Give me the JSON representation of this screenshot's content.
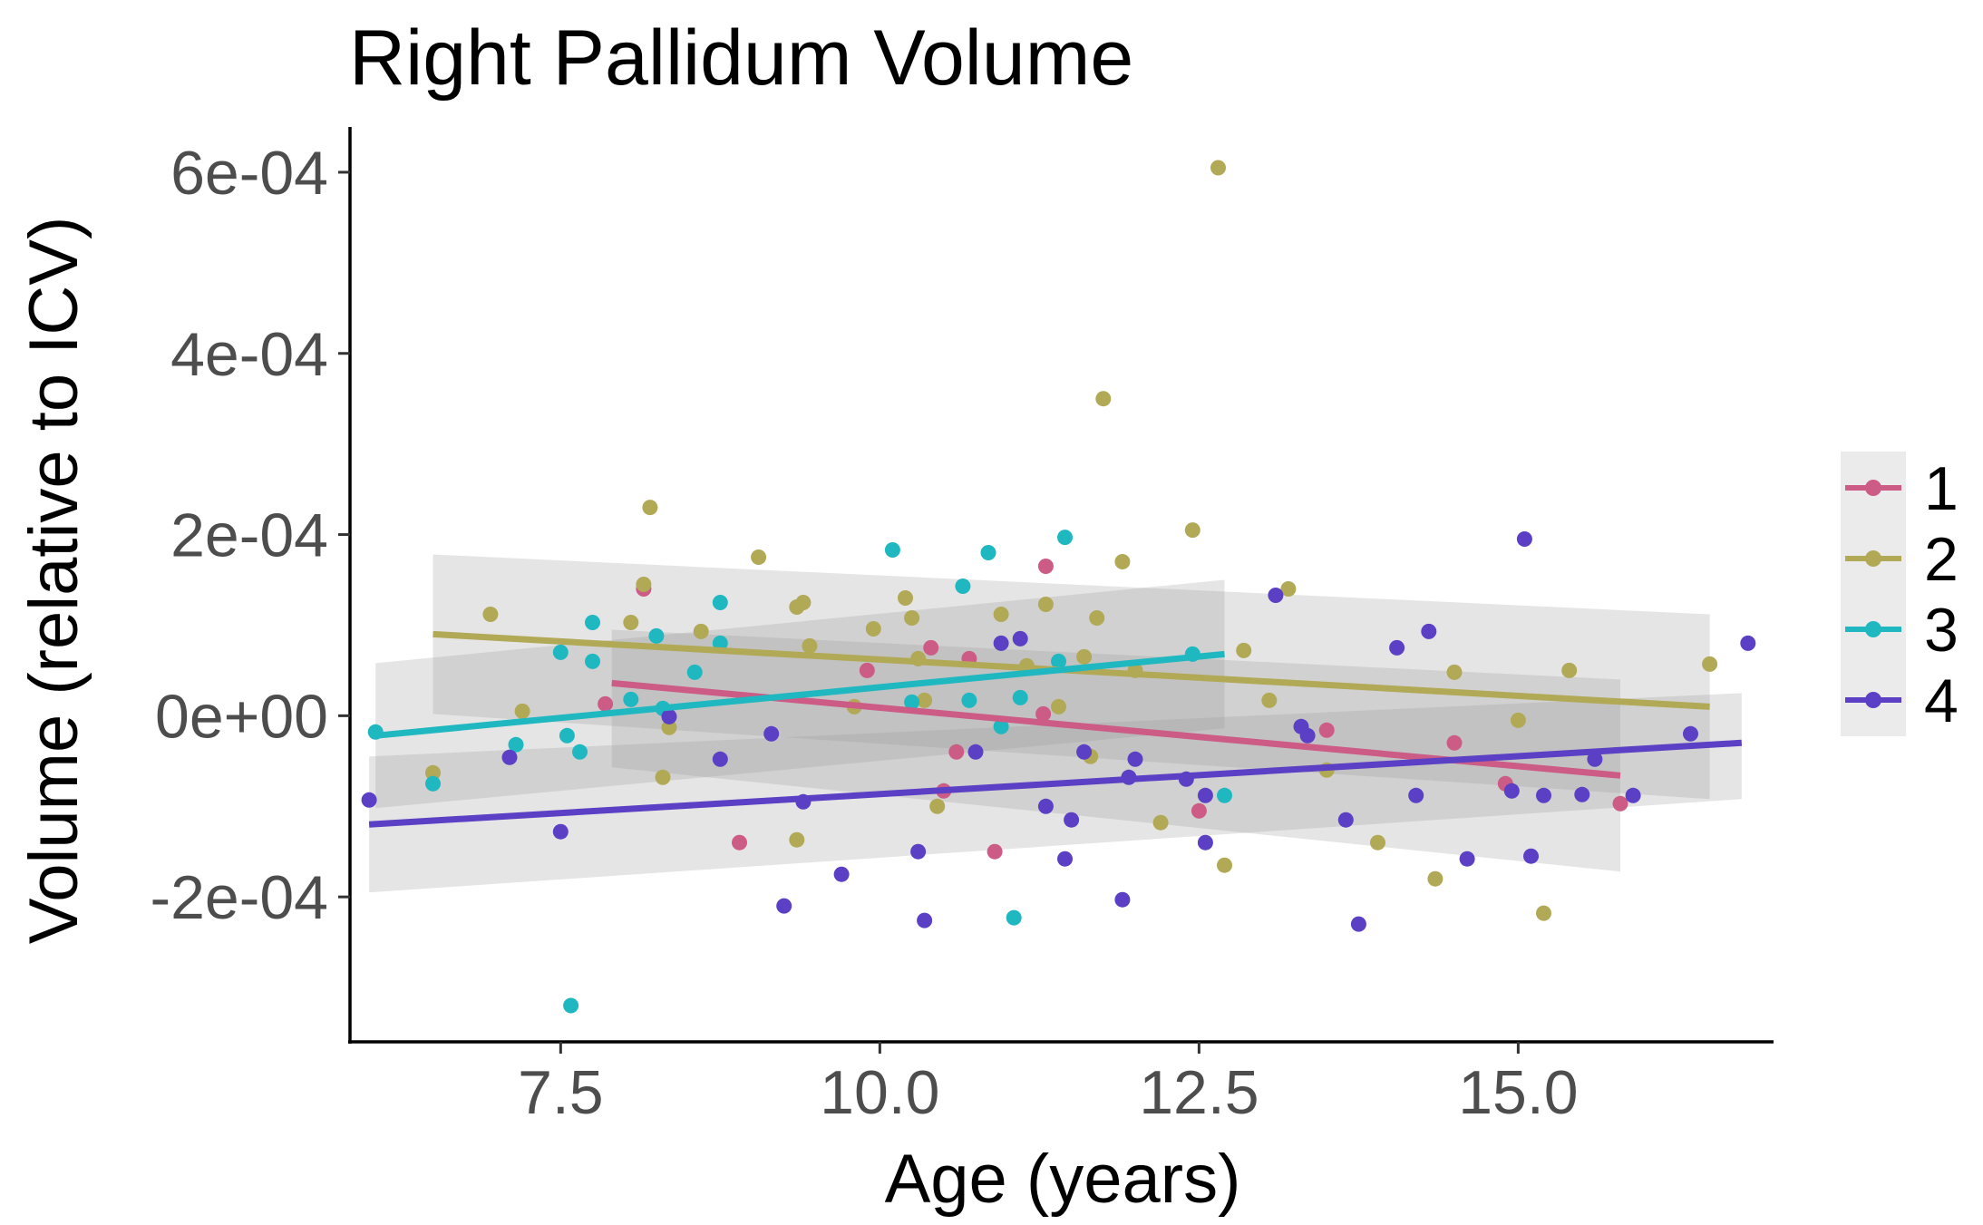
{
  "chart_data": {
    "type": "scatter",
    "title": "Right Pallidum Volume",
    "xlabel": "Age (years)",
    "ylabel": "Volume (relative to ICV)",
    "xlim": [
      5.85,
      17.0
    ],
    "ylim": [
      -0.00036,
      0.00065
    ],
    "x_ticks": [
      7.5,
      10.0,
      12.5,
      15.0
    ],
    "x_tick_labels": [
      "7.5",
      "10.0",
      "12.5",
      "15.0"
    ],
    "y_ticks": [
      -0.0002,
      0.0,
      0.0002,
      0.0004,
      0.0006
    ],
    "y_tick_labels": [
      "-2e-04",
      "0e+00",
      "2e-04",
      "4e-04",
      "6e-04"
    ],
    "grid": false,
    "legend_position": "right",
    "series": [
      {
        "name": "1",
        "color": "#cc5b86",
        "points": [
          [
            7.85,
            1.3e-05
          ],
          [
            8.15,
            0.00014
          ],
          [
            8.9,
            -0.00014
          ],
          [
            9.9,
            5e-05
          ],
          [
            10.4,
            7.5e-05
          ],
          [
            10.6,
            -4e-05
          ],
          [
            10.7,
            6.3e-05
          ],
          [
            10.5,
            -8.3e-05
          ],
          [
            10.9,
            -0.00015
          ],
          [
            11.3,
            0.000165
          ],
          [
            11.28,
            2e-06
          ],
          [
            12.5,
            -0.000105
          ],
          [
            13.5,
            -1.6e-05
          ],
          [
            14.5,
            -3e-05
          ],
          [
            14.9,
            -7.5e-05
          ],
          [
            15.8,
            -9.7e-05
          ]
        ],
        "fit": {
          "x": [
            7.9,
            15.8
          ],
          "y": [
            3.6e-05,
            -6.6e-05
          ],
          "ci_upper": [
            9.5e-05,
            4e-05
          ],
          "ci_lower": [
            -5.7e-05,
            -0.000172
          ]
        }
      },
      {
        "name": "2",
        "color": "#b1a956",
        "points": [
          [
            6.5,
            -6.3e-05
          ],
          [
            6.95,
            0.000112
          ],
          [
            7.2,
            5e-06
          ],
          [
            8.05,
            0.000103
          ],
          [
            8.15,
            0.000145
          ],
          [
            8.2,
            0.00023
          ],
          [
            8.3,
            -6.8e-05
          ],
          [
            8.35,
            -1.3e-05
          ],
          [
            8.6,
            9.3e-05
          ],
          [
            9.05,
            0.000175
          ],
          [
            9.35,
            0.00012
          ],
          [
            9.4,
            0.000125
          ],
          [
            9.45,
            7.7e-05
          ],
          [
            9.35,
            -0.000137
          ],
          [
            9.8,
            1e-05
          ],
          [
            9.95,
            9.6e-05
          ],
          [
            10.2,
            0.00013
          ],
          [
            10.25,
            0.000108
          ],
          [
            10.3,
            6.3e-05
          ],
          [
            10.35,
            1.7e-05
          ],
          [
            10.45,
            -0.0001
          ],
          [
            10.95,
            0.000112
          ],
          [
            11.15,
            5.5e-05
          ],
          [
            11.3,
            0.000123
          ],
          [
            11.4,
            1e-05
          ],
          [
            11.6,
            6.5e-05
          ],
          [
            11.65,
            -4.5e-05
          ],
          [
            11.7,
            0.000108
          ],
          [
            11.75,
            0.00035
          ],
          [
            11.9,
            0.00017
          ],
          [
            12.0,
            5e-05
          ],
          [
            12.2,
            -0.000118
          ],
          [
            12.45,
            0.000205
          ],
          [
            12.65,
            0.000605
          ],
          [
            12.7,
            -0.000165
          ],
          [
            12.85,
            7.2e-05
          ],
          [
            13.05,
            1.7e-05
          ],
          [
            13.2,
            0.00014
          ],
          [
            13.5,
            -6e-05
          ],
          [
            13.9,
            -0.00014
          ],
          [
            14.35,
            -0.00018
          ],
          [
            14.5,
            4.8e-05
          ],
          [
            15.0,
            -5e-06
          ],
          [
            15.2,
            -0.000218
          ],
          [
            15.4,
            5e-05
          ],
          [
            16.5,
            5.7e-05
          ]
        ],
        "fit": {
          "x": [
            6.5,
            16.5
          ],
          "y": [
            9e-05,
            1e-05
          ],
          "ci_upper": [
            0.000178,
            0.000112
          ],
          "ci_lower": [
            2e-06,
            -9.2e-05
          ]
        }
      },
      {
        "name": "3",
        "color": "#1fb8c1",
        "points": [
          [
            6.05,
            -1.8e-05
          ],
          [
            6.5,
            -7.5e-05
          ],
          [
            7.15,
            -3.2e-05
          ],
          [
            7.5,
            7e-05
          ],
          [
            7.55,
            -2.2e-05
          ],
          [
            7.58,
            -0.00032
          ],
          [
            7.65,
            -4e-05
          ],
          [
            7.75,
            6e-05
          ],
          [
            7.75,
            0.000103
          ],
          [
            8.05,
            1.8e-05
          ],
          [
            8.25,
            8.8e-05
          ],
          [
            8.3,
            8e-06
          ],
          [
            8.55,
            4.8e-05
          ],
          [
            8.75,
            8e-05
          ],
          [
            8.75,
            0.000125
          ],
          [
            10.1,
            0.000183
          ],
          [
            10.25,
            1.5e-05
          ],
          [
            10.65,
            0.000143
          ],
          [
            10.7,
            1.7e-05
          ],
          [
            10.85,
            0.00018
          ],
          [
            10.95,
            -1.2e-05
          ],
          [
            11.05,
            -0.000223
          ],
          [
            11.1,
            2e-05
          ],
          [
            11.4,
            6e-05
          ],
          [
            11.45,
            0.000197
          ],
          [
            12.45,
            6.8e-05
          ],
          [
            12.7,
            -8.8e-05
          ]
        ],
        "fit": {
          "x": [
            6.05,
            12.7
          ],
          "y": [
            -2.2e-05,
            6.8e-05
          ],
          "ci_upper": [
            5.8e-05,
            0.00015
          ],
          "ci_lower": [
            -0.000102,
            -1.4e-05
          ]
        }
      },
      {
        "name": "4",
        "color": "#5b3fc4",
        "points": [
          [
            6.0,
            -9.3e-05
          ],
          [
            7.1,
            -4.6e-05
          ],
          [
            7.5,
            -0.000128
          ],
          [
            8.35,
            -1e-06
          ],
          [
            8.75,
            -4.8e-05
          ],
          [
            9.15,
            -2e-05
          ],
          [
            9.25,
            -0.00021
          ],
          [
            9.4,
            -9.5e-05
          ],
          [
            9.7,
            -0.000175
          ],
          [
            10.3,
            -0.00015
          ],
          [
            10.35,
            -0.000226
          ],
          [
            10.75,
            -4e-05
          ],
          [
            10.95,
            8e-05
          ],
          [
            11.1,
            8.5e-05
          ],
          [
            11.3,
            -0.0001
          ],
          [
            11.45,
            -0.000158
          ],
          [
            11.5,
            -0.000115
          ],
          [
            11.6,
            -4e-05
          ],
          [
            11.9,
            -0.000203
          ],
          [
            11.95,
            -6.8e-05
          ],
          [
            12.0,
            -4.8e-05
          ],
          [
            12.4,
            -7e-05
          ],
          [
            12.55,
            -8.8e-05
          ],
          [
            12.55,
            -0.00014
          ],
          [
            13.1,
            0.000133
          ],
          [
            13.3,
            -1.2e-05
          ],
          [
            13.35,
            -2.2e-05
          ],
          [
            13.65,
            -0.000115
          ],
          [
            13.75,
            -0.00023
          ],
          [
            14.05,
            7.5e-05
          ],
          [
            14.2,
            -8.8e-05
          ],
          [
            14.3,
            9.3e-05
          ],
          [
            14.6,
            -0.000158
          ],
          [
            14.95,
            -8.3e-05
          ],
          [
            15.05,
            0.000195
          ],
          [
            15.1,
            -0.000155
          ],
          [
            15.2,
            -8.8e-05
          ],
          [
            15.5,
            -8.7e-05
          ],
          [
            15.6,
            -4.8e-05
          ],
          [
            15.9,
            -8.8e-05
          ],
          [
            16.35,
            -2e-05
          ],
          [
            16.8,
            8e-05
          ]
        ],
        "fit": {
          "x": [
            6.0,
            16.75
          ],
          "y": [
            -0.00012,
            -3e-05
          ],
          "ci_upper": [
            -4.5e-05,
            2.5e-05
          ],
          "ci_lower": [
            -0.000195,
            -9.2e-05
          ]
        }
      }
    ]
  }
}
